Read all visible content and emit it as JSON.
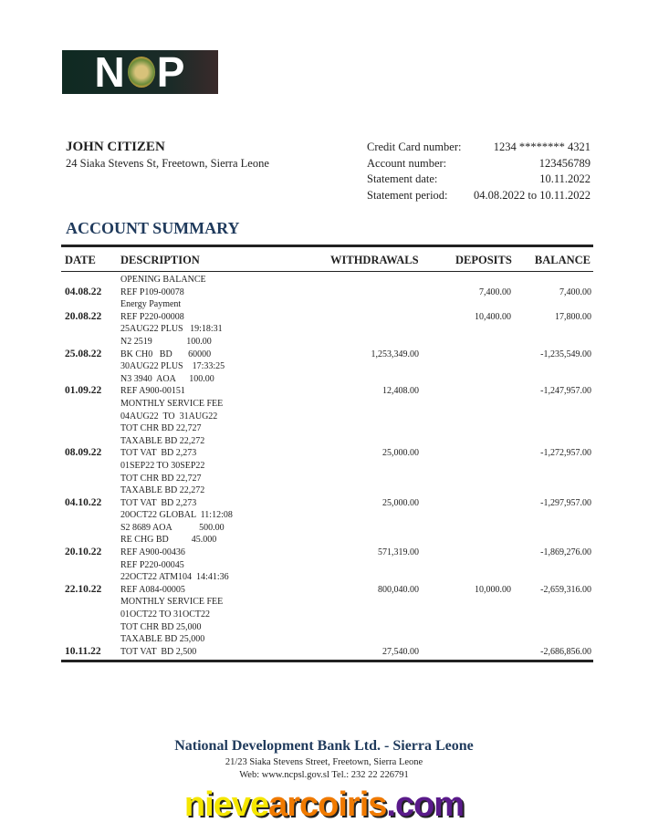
{
  "logo": {
    "text_left": "N",
    "text_right": "P"
  },
  "customer": {
    "name": "JOHN CITIZEN",
    "address": "24 Siaka Stevens St, Freetown, Sierra Leone"
  },
  "info": [
    {
      "label": "Credit Card number:",
      "value": "1234 ******** 4321"
    },
    {
      "label": "Account number:",
      "value": "123456789"
    },
    {
      "label": "Statement date:",
      "value": "10.11.2022"
    },
    {
      "label": "Statement period:",
      "value": "04.08.2022 to 10.11.2022"
    }
  ],
  "summary_title": "ACCOUNT SUMMARY",
  "columns": {
    "date": "DATE",
    "description": "DESCRIPTION",
    "withdrawals": "WITHDRAWALS",
    "deposits": "DEPOSITS",
    "balance": "BALANCE"
  },
  "transactions": [
    {
      "date": "04.08.22",
      "lines": [
        "OPENING BALANCE",
        "REF P109-00078"
      ],
      "withdrawal": "",
      "deposit": "7,400.00",
      "balance": "7,400.00"
    },
    {
      "date": "20.08.22",
      "lines": [
        "Energy Payment",
        "REF P220-00008"
      ],
      "withdrawal": "",
      "deposit": "10,400.00",
      "balance": "17,800.00"
    },
    {
      "date": "25.08.22",
      "lines": [
        "25AUG22 PLUS   19:18:31",
        "N2 2519               100.00",
        "BK CH0   BD       60000"
      ],
      "withdrawal": "1,253,349.00",
      "deposit": "",
      "balance": "-1,235,549.00"
    },
    {
      "date": "01.09.22",
      "lines": [
        "30AUG22 PLUS    17:33:25",
        "N3 3940  AOA      100.00",
        "REF A900-00151"
      ],
      "withdrawal": "12,408.00",
      "deposit": "",
      "balance": "-1,247,957.00"
    },
    {
      "date": "08.09.22",
      "lines": [
        "MONTHLY SERVICE FEE",
        "04AUG22  TO  31AUG22",
        "TOT CHR BD 22,727",
        "TAXABLE BD 22,272",
        "TOT VAT  BD 2,273"
      ],
      "withdrawal": "25,000.00",
      "deposit": "",
      "balance": "-1,272,957.00"
    },
    {
      "date": "04.10.22",
      "lines": [
        "01SEP22 TO 30SEP22",
        "TOT CHR BD 22,727",
        "TAXABLE BD 22,272",
        "TOT VAT  BD 2,273"
      ],
      "withdrawal": "25,000.00",
      "deposit": "",
      "balance": "-1,297,957.00"
    },
    {
      "date": "20.10.22",
      "lines": [
        "20OCT22 GLOBAL  11:12:08",
        "S2 8689 AOA            500.00",
        "RE CHG BD          45.000",
        "REF A900-00436"
      ],
      "withdrawal": "571,319.00",
      "deposit": "",
      "balance": "-1,869,276.00"
    },
    {
      "date": "22.10.22",
      "lines": [
        "REF P220-00045",
        "22OCT22 ATM104  14:41:36",
        "REF A084-00005"
      ],
      "withdrawal": "800,040.00",
      "deposit": "10,000.00",
      "balance": "-2,659,316.00"
    },
    {
      "date": "10.11.22",
      "lines": [
        "MONTHLY SERVICE FEE",
        "01OCT22 TO 31OCT22",
        "TOT CHR BD 25,000",
        "TAXABLE BD 25,000",
        "TOT VAT  BD 2,500"
      ],
      "withdrawal": "27,540.00",
      "deposit": "",
      "balance": "-2,686,856.00"
    }
  ],
  "footer": {
    "bank": "National Development Bank Ltd. - Sierra Leone",
    "address": "21/23 Siaka Stevens Street, Freetown, Sierra Leone",
    "contact": "Web: www.ncpsl.gov.sl  Tel.: 232 22 226791"
  },
  "watermark": {
    "part1": "nieve",
    "part2": "arcoiris",
    "part3": ".com"
  }
}
